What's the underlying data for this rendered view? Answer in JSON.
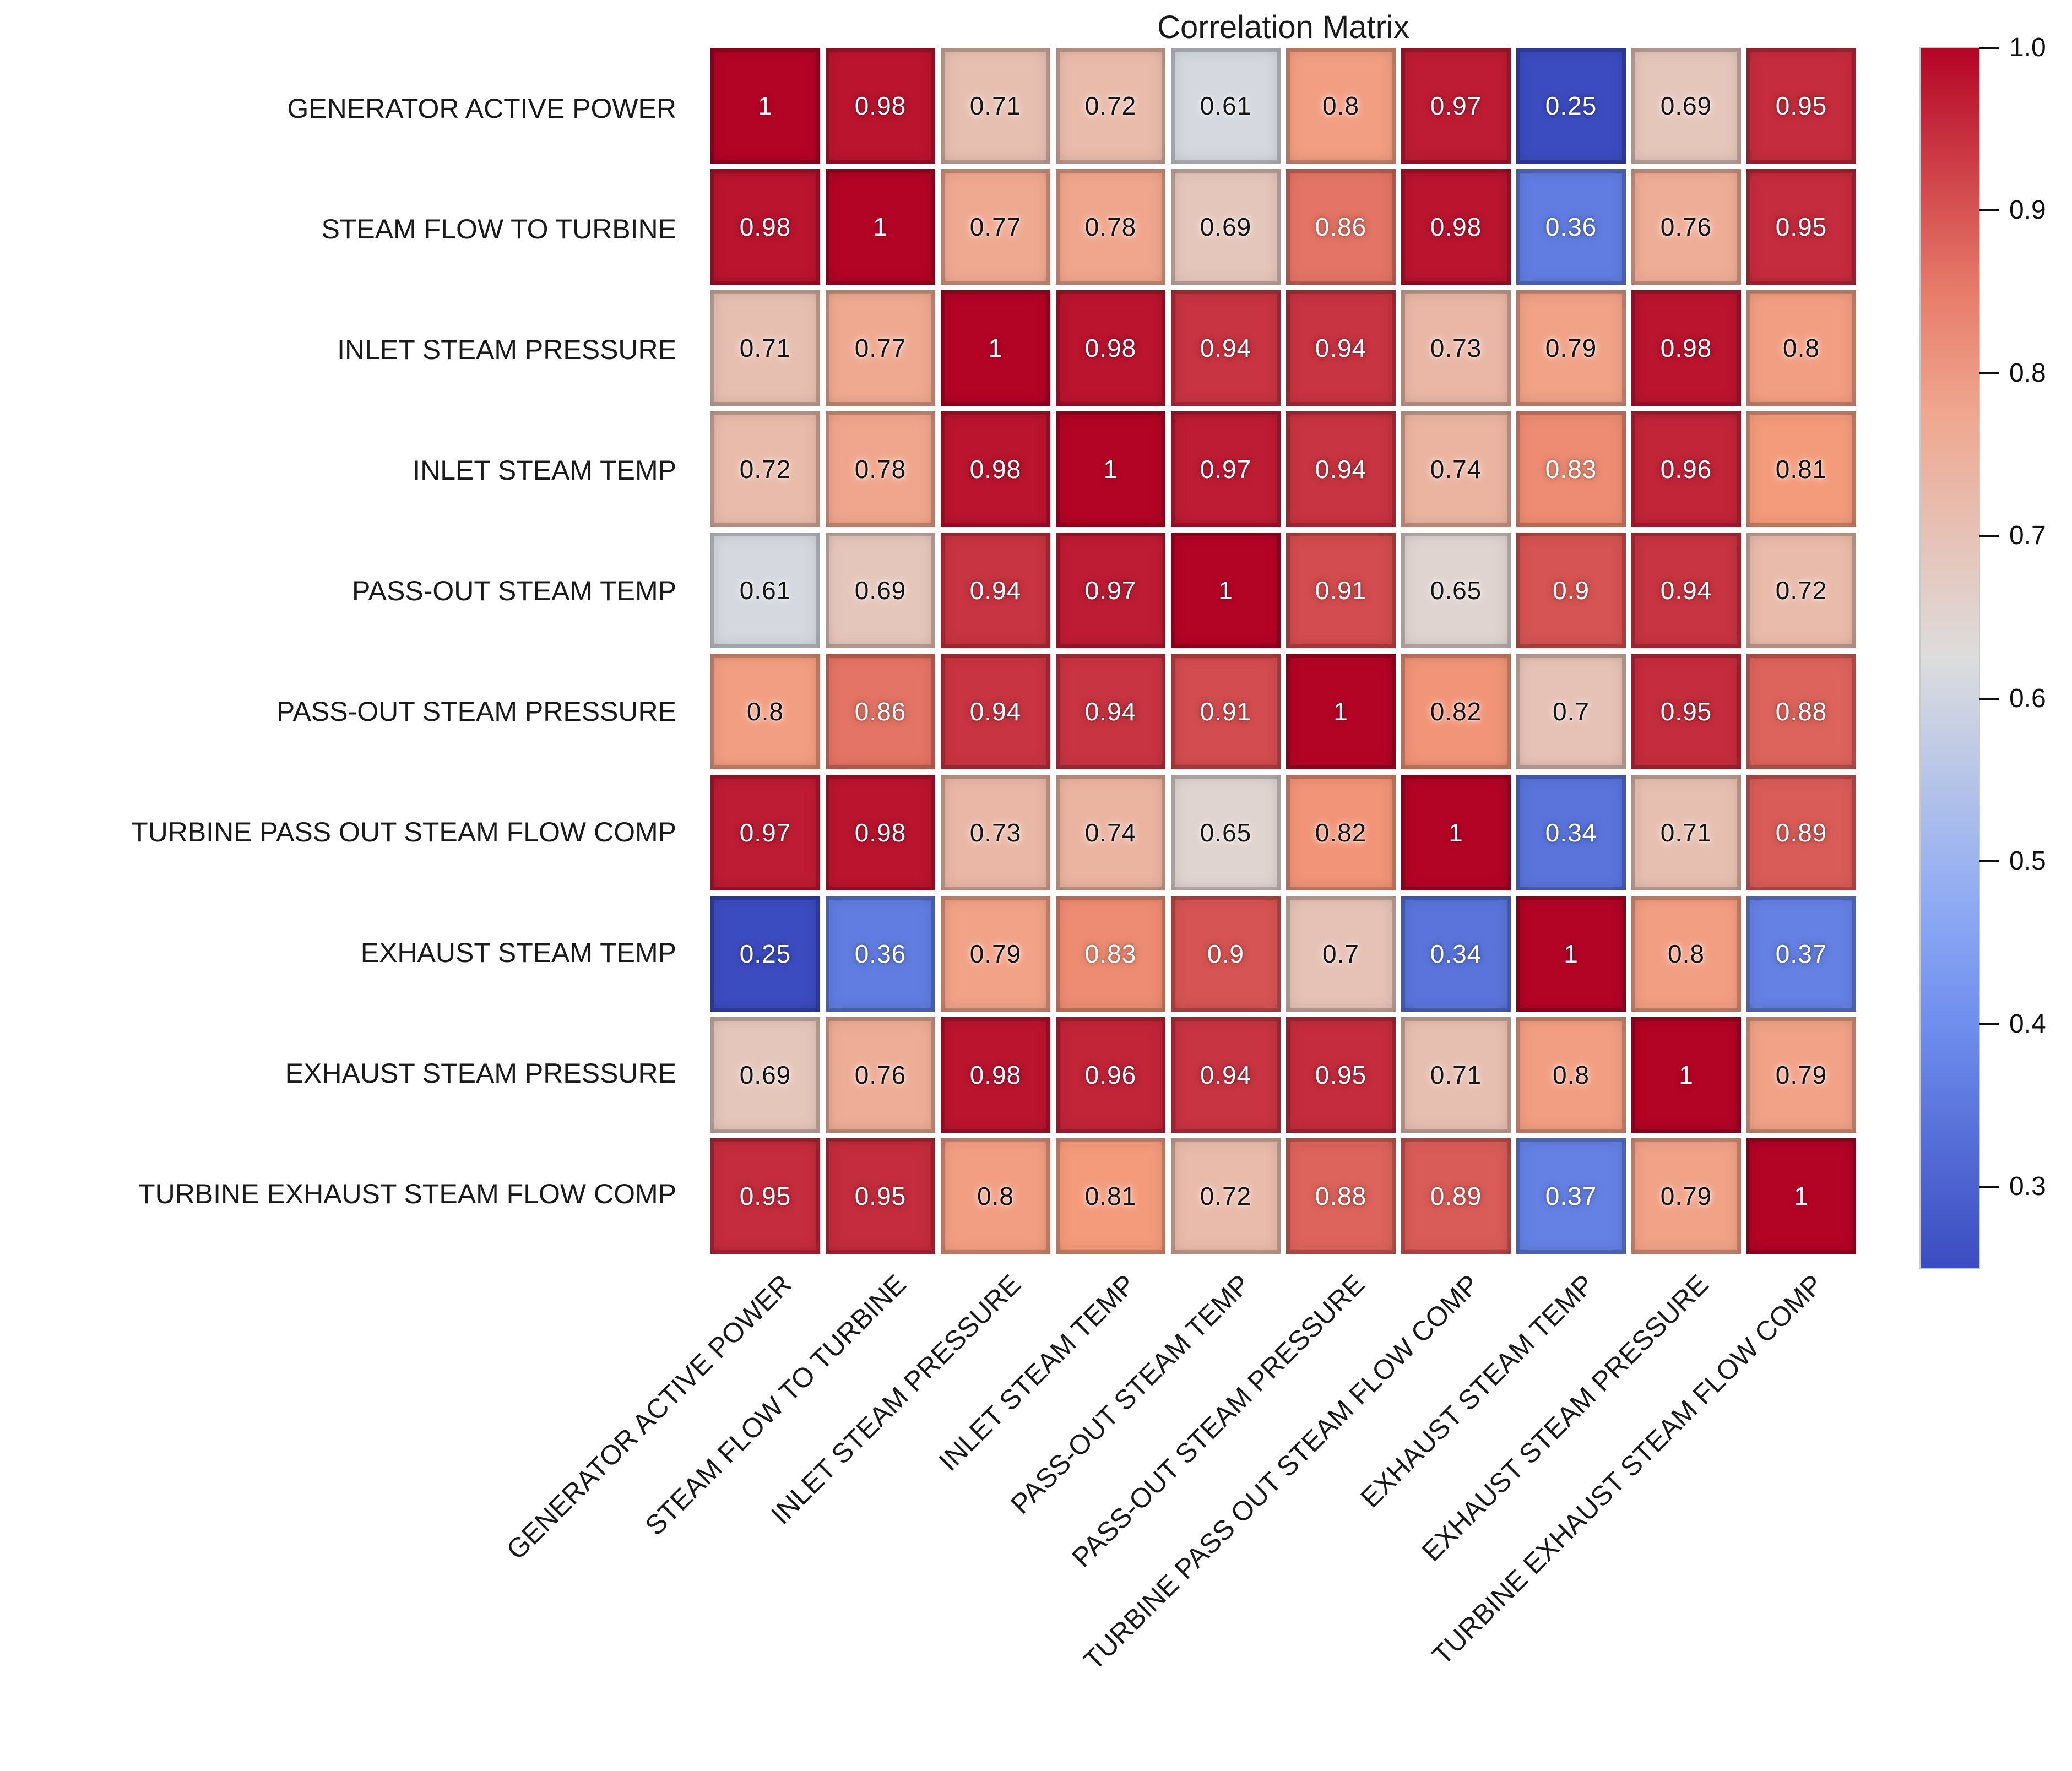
{
  "title": "Correlation Matrix",
  "chart_data": {
    "type": "heatmap",
    "title": "Correlation Matrix",
    "categories": [
      "GENERATOR ACTIVE POWER",
      "STEAM FLOW TO TURBINE",
      "INLET STEAM PRESSURE",
      "INLET STEAM TEMP",
      "PASS-OUT STEAM TEMP",
      "PASS-OUT STEAM PRESSURE",
      "TURBINE PASS OUT STEAM FLOW COMP",
      "EXHAUST STEAM TEMP",
      "EXHAUST STEAM PRESSURE",
      "TURBINE EXHAUST STEAM FLOW COMP"
    ],
    "matrix": [
      [
        1,
        0.98,
        0.71,
        0.72,
        0.61,
        0.8,
        0.97,
        0.25,
        0.69,
        0.95
      ],
      [
        0.98,
        1,
        0.77,
        0.78,
        0.69,
        0.86,
        0.98,
        0.36,
        0.76,
        0.95
      ],
      [
        0.71,
        0.77,
        1,
        0.98,
        0.94,
        0.94,
        0.73,
        0.79,
        0.98,
        0.8
      ],
      [
        0.72,
        0.78,
        0.98,
        1,
        0.97,
        0.94,
        0.74,
        0.83,
        0.96,
        0.81
      ],
      [
        0.61,
        0.69,
        0.94,
        0.97,
        1,
        0.91,
        0.65,
        0.9,
        0.94,
        0.72
      ],
      [
        0.8,
        0.86,
        0.94,
        0.94,
        0.91,
        1,
        0.82,
        0.7,
        0.95,
        0.88
      ],
      [
        0.97,
        0.98,
        0.73,
        0.74,
        0.65,
        0.82,
        1,
        0.34,
        0.71,
        0.89
      ],
      [
        0.25,
        0.36,
        0.79,
        0.83,
        0.9,
        0.7,
        0.34,
        1,
        0.8,
        0.37
      ],
      [
        0.69,
        0.76,
        0.98,
        0.96,
        0.94,
        0.95,
        0.71,
        0.8,
        1,
        0.79
      ],
      [
        0.95,
        0.95,
        0.8,
        0.81,
        0.72,
        0.88,
        0.89,
        0.37,
        0.79,
        1
      ]
    ],
    "grid": false,
    "annotated": true,
    "colormap": {
      "name": "coolwarm",
      "anchors": [
        {
          "t": 0.0,
          "hex": "#3b4cc0"
        },
        {
          "t": 0.25,
          "hex": "#7c9ff9"
        },
        {
          "t": 0.5,
          "hex": "#dddddd"
        },
        {
          "t": 0.75,
          "hex": "#f49a7b"
        },
        {
          "t": 1.0,
          "hex": "#b40426"
        }
      ]
    },
    "vmin": 0.25,
    "vmax": 1.0,
    "colorbar": {
      "position": "right",
      "tick_labels": [
        "1.0",
        "0.9",
        "0.8",
        "0.7",
        "0.6",
        "0.5",
        "0.4",
        "0.3"
      ]
    }
  }
}
